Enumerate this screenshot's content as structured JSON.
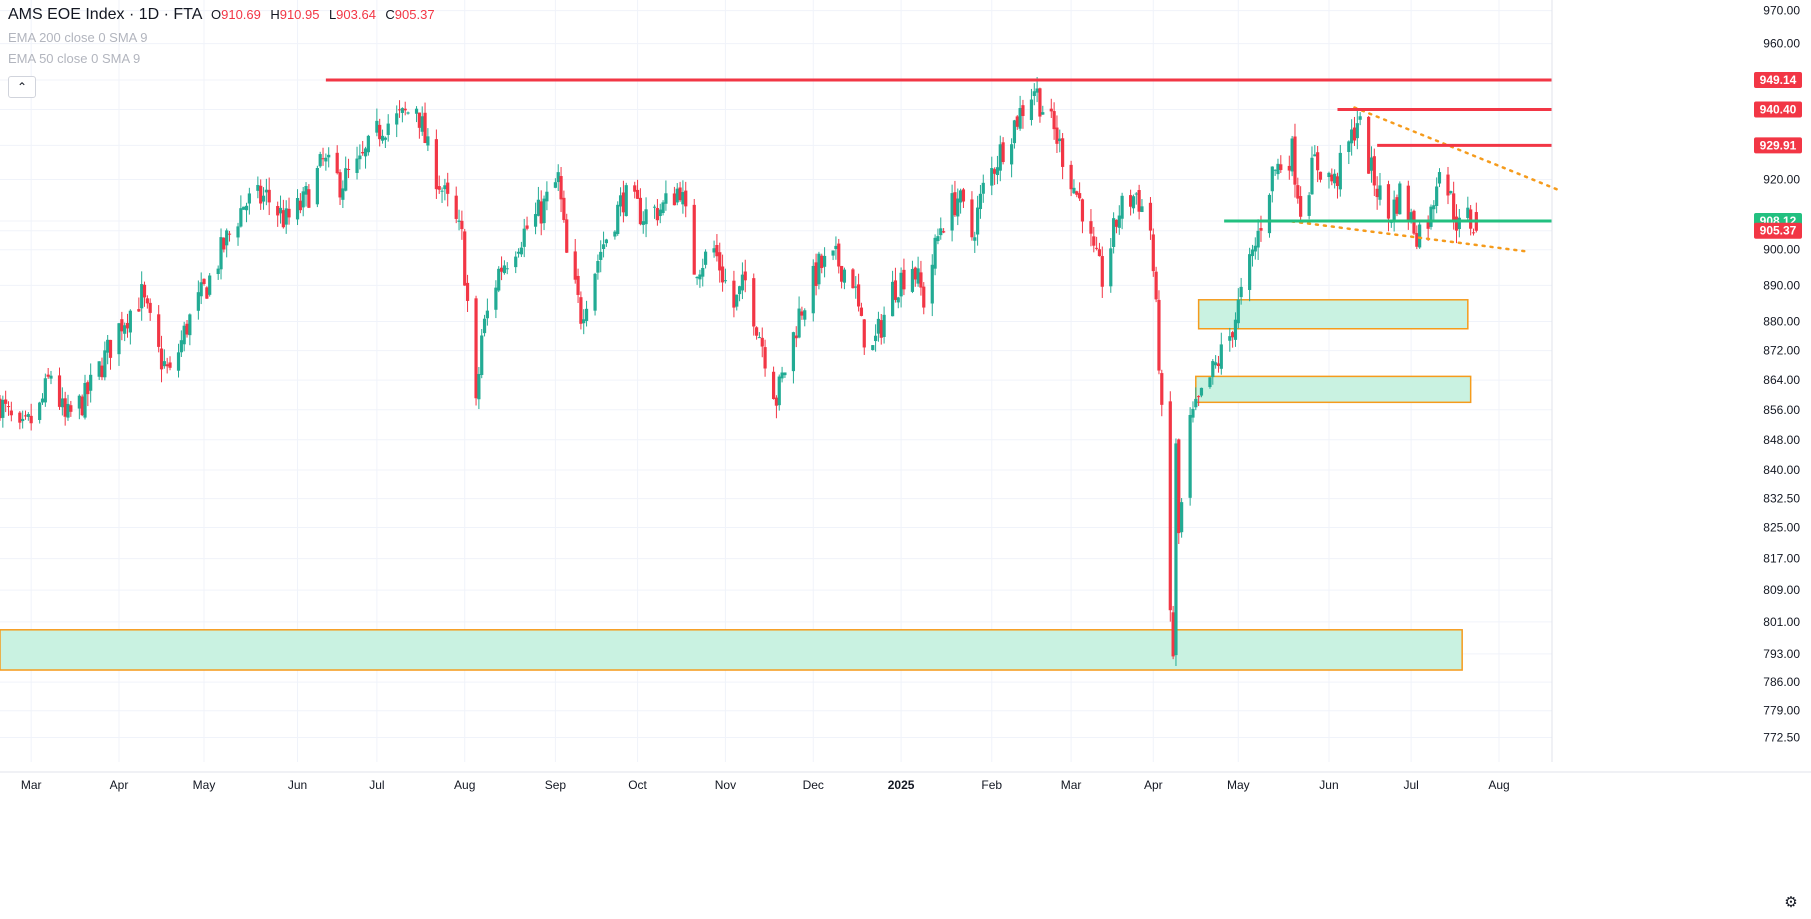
{
  "legend": {
    "symbol": "AMS EOE Index · 1D · FTA",
    "open_label": "O",
    "open": "910.69",
    "high_label": "H",
    "high": "910.95",
    "low_label": "L",
    "low": "903.64",
    "close_label": "C",
    "close": "905.37",
    "indicator1": "EMA 200 close 0 SMA 9",
    "indicator2": "EMA 50 close 0 SMA 9"
  },
  "controls": {
    "collapse_icon": "chevron-up-icon",
    "settings_icon": "gear-icon"
  },
  "colors": {
    "up": "#22ab94",
    "down": "#f23645",
    "resistance": "#f23645",
    "support": "#22c080",
    "zone_fill": "#c9f2e1",
    "zone_border": "#f59b1c",
    "trend": "#f59b1c",
    "grid": "#f0f3fa",
    "axis_text": "#131722"
  },
  "chart_data": {
    "type": "candlestick",
    "x_axis": {
      "start": "2024-02-19",
      "end": "2025-08-19",
      "ticks": [
        {
          "date": "2024-03-01",
          "label": "Mar"
        },
        {
          "date": "2024-04-01",
          "label": "Apr"
        },
        {
          "date": "2024-05-01",
          "label": "May"
        },
        {
          "date": "2024-06-03",
          "label": "Jun"
        },
        {
          "date": "2024-07-01",
          "label": "Jul"
        },
        {
          "date": "2024-08-01",
          "label": "Aug"
        },
        {
          "date": "2024-09-02",
          "label": "Sep"
        },
        {
          "date": "2024-10-01",
          "label": "Oct"
        },
        {
          "date": "2024-11-01",
          "label": "Nov"
        },
        {
          "date": "2024-12-02",
          "label": "Dec"
        },
        {
          "date": "2025-01-02",
          "label": "2025"
        },
        {
          "date": "2025-02-03",
          "label": "Feb"
        },
        {
          "date": "2025-03-03",
          "label": "Mar"
        },
        {
          "date": "2025-04-01",
          "label": "Apr"
        },
        {
          "date": "2025-05-01",
          "label": "May"
        },
        {
          "date": "2025-06-02",
          "label": "Jun"
        },
        {
          "date": "2025-07-01",
          "label": "Jul"
        },
        {
          "date": "2025-08-01",
          "label": "Aug"
        }
      ]
    },
    "y_axis": {
      "scale": "log",
      "range": [
        769,
        972
      ],
      "ticks": [
        "970.00",
        "960.00",
        "949.14",
        "940.40",
        "929.91",
        "920.00",
        "908.12",
        "905.37",
        "900.00",
        "890.00",
        "880.00",
        "872.00",
        "864.00",
        "856.00",
        "848.00",
        "840.00",
        "832.50",
        "825.00",
        "817.00",
        "809.00",
        "801.00",
        "793.00",
        "786.00",
        "779.00",
        "772.50"
      ]
    },
    "price_path": [
      [
        "2024-02-19",
        858
      ],
      [
        "2024-02-26",
        849
      ],
      [
        "2024-03-04",
        856
      ],
      [
        "2024-03-08",
        866
      ],
      [
        "2024-03-13",
        853
      ],
      [
        "2024-03-20",
        859
      ],
      [
        "2024-03-27",
        870
      ],
      [
        "2024-04-02",
        880
      ],
      [
        "2024-04-09",
        887
      ],
      [
        "2024-04-15",
        871
      ],
      [
        "2024-04-19",
        865
      ],
      [
        "2024-04-25",
        879
      ],
      [
        "2024-05-02",
        890
      ],
      [
        "2024-05-08",
        901
      ],
      [
        "2024-05-15",
        913
      ],
      [
        "2024-05-23",
        915
      ],
      [
        "2024-05-30",
        908
      ],
      [
        "2024-06-05",
        913
      ],
      [
        "2024-06-12",
        925
      ],
      [
        "2024-06-18",
        919
      ],
      [
        "2024-06-25",
        924
      ],
      [
        "2024-07-03",
        936
      ],
      [
        "2024-07-10",
        938
      ],
      [
        "2024-07-15",
        942
      ],
      [
        "2024-07-19",
        928
      ],
      [
        "2024-07-25",
        915
      ],
      [
        "2024-07-31",
        903
      ],
      [
        "2024-08-02",
        885
      ],
      [
        "2024-08-05",
        856
      ],
      [
        "2024-08-07",
        876
      ],
      [
        "2024-08-13",
        894
      ],
      [
        "2024-08-20",
        903
      ],
      [
        "2024-08-28",
        911
      ],
      [
        "2024-09-03",
        920
      ],
      [
        "2024-09-06",
        898
      ],
      [
        "2024-09-11",
        882
      ],
      [
        "2024-09-18",
        900
      ],
      [
        "2024-09-26",
        915
      ],
      [
        "2024-10-03",
        910
      ],
      [
        "2024-10-10",
        912
      ],
      [
        "2024-10-16",
        918
      ],
      [
        "2024-10-21",
        895
      ],
      [
        "2024-10-28",
        900
      ],
      [
        "2024-11-04",
        884
      ],
      [
        "2024-11-08",
        891
      ],
      [
        "2024-11-14",
        874
      ],
      [
        "2024-11-19",
        859
      ],
      [
        "2024-11-22",
        867
      ],
      [
        "2024-11-27",
        882
      ],
      [
        "2024-12-04",
        895
      ],
      [
        "2024-12-10",
        897
      ],
      [
        "2024-12-16",
        892
      ],
      [
        "2024-12-19",
        878
      ],
      [
        "2024-12-23",
        872
      ],
      [
        "2024-12-30",
        889
      ],
      [
        "2025-01-06",
        896
      ],
      [
        "2025-01-10",
        886
      ],
      [
        "2025-01-16",
        907
      ],
      [
        "2025-01-22",
        915
      ],
      [
        "2025-01-27",
        904
      ],
      [
        "2025-01-31",
        917
      ],
      [
        "2025-02-06",
        928
      ],
      [
        "2025-02-12",
        938
      ],
      [
        "2025-02-18",
        947
      ],
      [
        "2025-02-21",
        941
      ],
      [
        "2025-02-26",
        932
      ],
      [
        "2025-03-04",
        918
      ],
      [
        "2025-03-07",
        912
      ],
      [
        "2025-03-11",
        898
      ],
      [
        "2025-03-14",
        892
      ],
      [
        "2025-03-20",
        911
      ],
      [
        "2025-03-26",
        916
      ],
      [
        "2025-03-31",
        906
      ],
      [
        "2025-04-03",
        870
      ],
      [
        "2025-04-07",
        803
      ],
      [
        "2025-04-08",
        793
      ],
      [
        "2025-04-09",
        845
      ],
      [
        "2025-04-10",
        823
      ],
      [
        "2025-04-14",
        852
      ],
      [
        "2025-04-22",
        866
      ],
      [
        "2025-04-28",
        876
      ],
      [
        "2025-05-02",
        887
      ],
      [
        "2025-05-07",
        901
      ],
      [
        "2025-05-13",
        922
      ],
      [
        "2025-05-20",
        928
      ],
      [
        "2025-05-23",
        912
      ],
      [
        "2025-05-28",
        925
      ],
      [
        "2025-06-04",
        919
      ],
      [
        "2025-06-10",
        932
      ],
      [
        "2025-06-12",
        938
      ],
      [
        "2025-06-17",
        922
      ],
      [
        "2025-06-23",
        909
      ],
      [
        "2025-06-27",
        916
      ],
      [
        "2025-07-03",
        905
      ],
      [
        "2025-07-08",
        910
      ],
      [
        "2025-07-11",
        926
      ],
      [
        "2025-07-15",
        914
      ],
      [
        "2025-07-18",
        906
      ],
      [
        "2025-07-21",
        909
      ],
      [
        "2025-07-24",
        905.37
      ]
    ],
    "horizontal_levels": [
      {
        "price": 949.14,
        "label": "949.14",
        "from": "2024-06-13",
        "role": "resistance"
      },
      {
        "price": 940.4,
        "label": "940.40",
        "from": "2025-06-05",
        "role": "resistance"
      },
      {
        "price": 929.91,
        "label": "929.91",
        "from": "2025-06-19",
        "role": "resistance"
      },
      {
        "price": 908.12,
        "label": "908.12",
        "from": "2025-04-26",
        "role": "support"
      }
    ],
    "last_price": {
      "price": 905.37,
      "label": "905.37"
    },
    "zones": [
      {
        "from": "2024-02-19",
        "to": "2025-07-19",
        "low": 789,
        "high": 799
      },
      {
        "from": "2025-04-16",
        "to": "2025-07-22",
        "low": 858,
        "high": 865
      },
      {
        "from": "2025-04-17",
        "to": "2025-07-21",
        "low": 878,
        "high": 886
      }
    ],
    "trendlines": [
      {
        "x1": "2025-06-11",
        "y1": 941,
        "x2": "2025-08-22",
        "y2": 917
      },
      {
        "x1": "2025-05-20",
        "y1": 908,
        "x2": "2025-08-11",
        "y2": 899.5
      }
    ]
  }
}
